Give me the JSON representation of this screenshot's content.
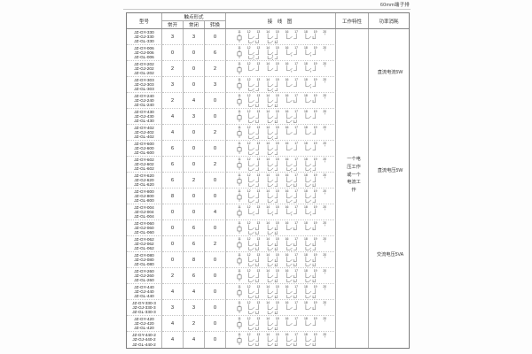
{
  "page": {
    "top_note": "60mm端子排"
  },
  "table": {
    "headers": {
      "model": "型号",
      "contact_form": "触点形式",
      "no": "常开",
      "nc": "常闭",
      "co": "转换",
      "wiring": "接 线 图",
      "work": "工作特性",
      "power": "功率消耗"
    },
    "terminals": [
      "11",
      "12",
      "13",
      "14",
      "15",
      "16",
      "17",
      "18",
      "19",
      "20"
    ],
    "work_characteristic": {
      "lines": [
        "一个电",
        "压工作",
        "或一个",
        "电流工",
        "作"
      ]
    },
    "power_notes": [
      {
        "label": "直流电流5W"
      },
      {
        "label": "直流电压5W"
      },
      {
        "label": "交流电压5VA"
      }
    ],
    "rows": [
      {
        "models": [
          "JZ-GY-330",
          "JZ-GJ-330",
          "JZ-GL-330"
        ],
        "no": 3,
        "nc": 3,
        "co": 0
      },
      {
        "models": [
          "JZ-GY-006",
          "JZ-GJ-006",
          "JZ-GL-006"
        ],
        "no": 0,
        "nc": 0,
        "co": 6
      },
      {
        "models": [
          "JZ-GY-202",
          "JZ-GJ-202",
          "JZ-GL-202"
        ],
        "no": 2,
        "nc": 0,
        "co": 2
      },
      {
        "models": [
          "JZ-GY-303",
          "JZ-GJ-303",
          "JZ-GL-303"
        ],
        "no": 3,
        "nc": 0,
        "co": 3
      },
      {
        "models": [
          "JZ-GY-240",
          "JZ-GJ-240",
          "JZ-GL-240"
        ],
        "no": 2,
        "nc": 4,
        "co": 0
      },
      {
        "models": [
          "JZ-GY-430",
          "JZ-GJ-430",
          "JZ-GL-430"
        ],
        "no": 4,
        "nc": 3,
        "co": 0
      },
      {
        "models": [
          "JZ-GY-402",
          "JZ-GJ-402",
          "JZ-GL-402"
        ],
        "no": 4,
        "nc": 0,
        "co": 2
      },
      {
        "models": [
          "JZ-GY-600",
          "JZ-GJ-600",
          "JZ-GL-600"
        ],
        "no": 6,
        "nc": 0,
        "co": 0
      },
      {
        "models": [
          "JZ-GY-602",
          "JZ-GJ-602",
          "JZ-GL-602"
        ],
        "no": 6,
        "nc": 0,
        "co": 2
      },
      {
        "models": [
          "JZ-GY-620",
          "JZ-GJ-620",
          "JZ-GL-620"
        ],
        "no": 6,
        "nc": 2,
        "co": 0
      },
      {
        "models": [
          "JZ-GY-800",
          "JZ-GJ-800",
          "JZ-GL-800"
        ],
        "no": 8,
        "nc": 0,
        "co": 0
      },
      {
        "models": [
          "JZ-GY-004",
          "JZ-GJ-004",
          "JZ-GL-004"
        ],
        "no": 0,
        "nc": 0,
        "co": 4
      },
      {
        "models": [
          "JZ-GY-060",
          "JZ-GJ-060",
          "JZ-GL-060"
        ],
        "no": 0,
        "nc": 6,
        "co": 0
      },
      {
        "models": [
          "JZ-GY-062",
          "JZ-GJ-062",
          "JZ-GL-062"
        ],
        "no": 0,
        "nc": 6,
        "co": 2
      },
      {
        "models": [
          "JZ-GY-080",
          "JZ-GJ-080",
          "JZ-GL-080"
        ],
        "no": 0,
        "nc": 8,
        "co": 0
      },
      {
        "models": [
          "JZ-GY-260",
          "JZ-GJ-260",
          "JZ-GL-260"
        ],
        "no": 2,
        "nc": 6,
        "co": 0
      },
      {
        "models": [
          "JZ-GY-440",
          "JZ-GJ-440",
          "JZ-GL-440"
        ],
        "no": 4,
        "nc": 4,
        "co": 0
      },
      {
        "models": [
          "JZ-GY-330-3",
          "JZ-GJ-330-3",
          "JZ-GL-330-3"
        ],
        "no": 3,
        "nc": 3,
        "co": 0
      },
      {
        "models": [
          "JZ-GY-420",
          "JZ-GJ-420",
          "JZ-GL-420"
        ],
        "no": 4,
        "nc": 2,
        "co": 0
      },
      {
        "models": [
          "JZ-GY-440-2",
          "JZ-GJ-440-2",
          "JZ-GL-440-2"
        ],
        "no": 4,
        "nc": 4,
        "co": 0
      }
    ]
  }
}
